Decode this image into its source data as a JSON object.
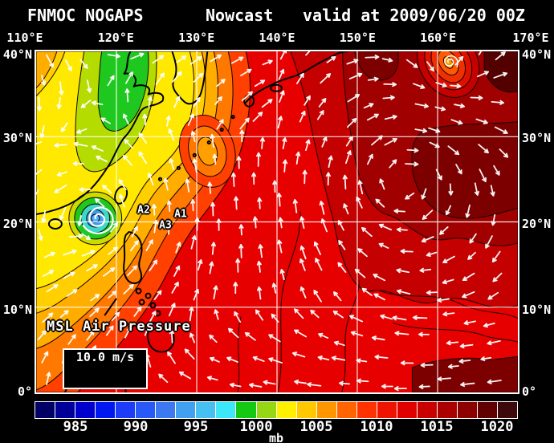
{
  "title": {
    "product": "FNMOC NOGAPS",
    "mode": "Nowcast",
    "valid": "valid at 2009/06/20 00Z"
  },
  "axes": {
    "lon": [
      "110°E",
      "120°E",
      "130°E",
      "140°E",
      "150°E",
      "160°E",
      "170°E"
    ],
    "lat": [
      "40°N",
      "30°N",
      "20°N",
      "10°N",
      "0°"
    ]
  },
  "overlays": {
    "field_label": "MSL Air Pressure",
    "wind_scale_label": "10.0 m/s",
    "markers": [
      {
        "label": "A2"
      },
      {
        "label": "A1"
      },
      {
        "label": "A3"
      }
    ]
  },
  "colorbar": {
    "unit": "mb",
    "ticks": [
      "985",
      "990",
      "995",
      "1000",
      "1005",
      "1010",
      "1015",
      "1020"
    ],
    "colors": [
      "#000066",
      "#000099",
      "#0000CC",
      "#0018F0",
      "#1C3CF8",
      "#2858F8",
      "#3C78F0",
      "#42A0F0",
      "#46C0F0",
      "#3CE8F8",
      "#14C814",
      "#96D714",
      "#FFF000",
      "#FFC800",
      "#FF9600",
      "#FF6400",
      "#FF3200",
      "#F01400",
      "#E00000",
      "#C80000",
      "#AA0000",
      "#8C0000",
      "#600000",
      "#3C0A0A"
    ]
  },
  "field_colors": {
    "base_red": "#E60000",
    "dark_red_1": "#C40000",
    "dark_red_2": "#A00000",
    "maroon": "#7C0000",
    "darkest": "#520000",
    "band_red_orange": "#FF4000",
    "band_orange": "#FF7800",
    "band_light_orange": "#FFAE00",
    "band_amber": "#FFCF00",
    "yellow": "#FFE900",
    "yellow_green": "#B4DC00",
    "green": "#1EC81E",
    "cyclone_cyan": "#3CD8C8",
    "cyclone_blue": "#3C9CF0",
    "cyclone_core": "#50B4FF"
  }
}
